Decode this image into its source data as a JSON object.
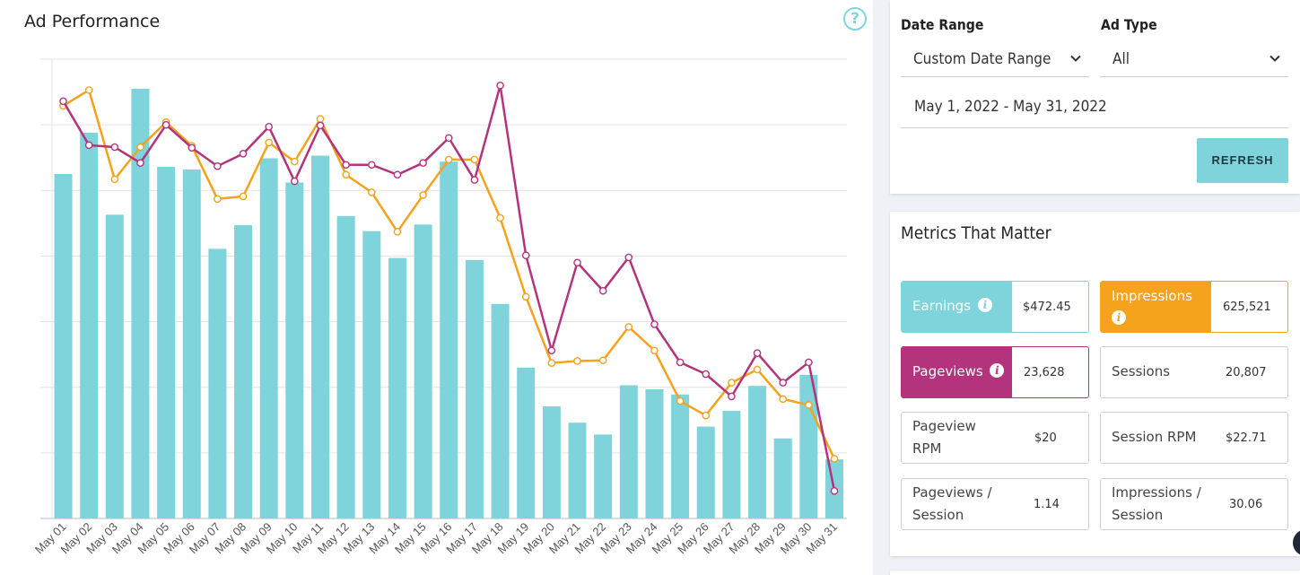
{
  "chart": {
    "title": "Ad Performance",
    "help_icon": "question-circle-icon"
  },
  "filters": {
    "date_range_label": "Date Range",
    "date_range_value": "Custom Date Range",
    "ad_type_label": "Ad Type",
    "ad_type_value": "All",
    "dates": "May 1, 2022 - May 31, 2022",
    "refresh_label": "REFRESH"
  },
  "metrics": {
    "title": "Metrics That Matter",
    "earnings_label": "Earnings",
    "earnings_value": "$472.45",
    "impressions_label": "Impressions",
    "impressions_value": "625,521",
    "pageviews_label": "Pageviews",
    "pageviews_value": "23,628",
    "sessions_label": "Sessions",
    "sessions_value": "20,807",
    "pageview_rpm_label": "Pageview RPM",
    "pageview_rpm_value": "$20",
    "session_rpm_label": "Session RPM",
    "session_rpm_value": "$22.71",
    "pageviews_per_session_label": "Pageviews / Session",
    "pageviews_per_session_value": "1.14",
    "impressions_per_session_label": "Impressions / Session",
    "impressions_per_session_value": "30.06"
  },
  "colors": {
    "earnings": "#7fd3da",
    "impressions": "#f5a21c",
    "pageviews": "#b3347d"
  },
  "chart_data": {
    "type": "bar",
    "categories": [
      "May 01",
      "May 02",
      "May 03",
      "May 04",
      "May 05",
      "May 06",
      "May 07",
      "May 08",
      "May 09",
      "May 10",
      "May 11",
      "May 12",
      "May 13",
      "May 14",
      "May 15",
      "May 16",
      "May 17",
      "May 18",
      "May 19",
      "May 20",
      "May 21",
      "May 22",
      "May 23",
      "May 24",
      "May 25",
      "May 26",
      "May 27",
      "May 28",
      "May 29",
      "May 30",
      "May 31"
    ],
    "ylim": [
      0,
      7
    ],
    "grid": true,
    "series": [
      {
        "type": "bar",
        "color": "#7fd3da",
        "values": [
          5.25,
          5.88,
          4.63,
          6.55,
          5.36,
          5.32,
          4.11,
          4.47,
          5.49,
          5.12,
          5.53,
          4.61,
          4.38,
          3.97,
          4.48,
          5.44,
          3.94,
          3.27,
          2.3,
          1.71,
          1.46,
          1.28,
          2.03,
          1.97,
          1.89,
          1.4,
          1.64,
          2.02,
          1.22,
          2.19,
          0.9
        ]
      },
      {
        "type": "line",
        "color": "#f5a21c",
        "values": [
          6.29,
          6.53,
          5.17,
          5.66,
          6.04,
          5.68,
          4.87,
          4.91,
          5.73,
          5.44,
          6.09,
          5.24,
          4.97,
          4.37,
          4.93,
          5.47,
          5.47,
          4.58,
          3.38,
          2.37,
          2.4,
          2.41,
          2.92,
          2.56,
          1.79,
          1.57,
          2.07,
          2.27,
          1.82,
          1.73,
          0.91
        ]
      },
      {
        "type": "line",
        "color": "#b3347d",
        "values": [
          6.36,
          5.69,
          5.66,
          5.42,
          6.0,
          5.65,
          5.37,
          5.56,
          5.97,
          5.14,
          5.99,
          5.39,
          5.39,
          5.24,
          5.42,
          5.8,
          5.16,
          6.6,
          4.01,
          2.56,
          3.9,
          3.47,
          3.98,
          2.96,
          2.38,
          2.2,
          1.86,
          2.52,
          2.07,
          2.38,
          0.42
        ]
      }
    ]
  }
}
